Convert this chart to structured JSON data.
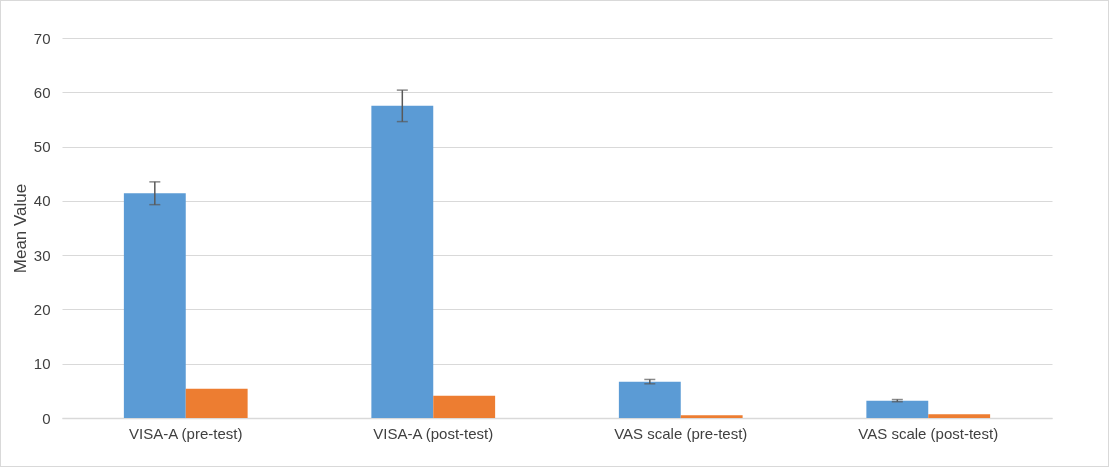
{
  "chart_data": {
    "type": "bar",
    "ylabel": "Mean Value",
    "categories": [
      "VISA-A (pre-test)",
      "VISA-A (post-test)",
      "VAS scale (pre-test)",
      "VAS scale (post-test)"
    ],
    "series": [
      {
        "color": "#5b9bd5",
        "values": [
          41.4,
          57.5,
          6.7,
          3.2
        ],
        "errors": [
          2.1,
          2.9,
          0.4,
          0.2
        ]
      },
      {
        "color": "#ed7d31",
        "values": [
          5.4,
          4.1,
          0.5,
          0.7
        ]
      }
    ],
    "ylim": [
      0,
      70
    ],
    "yticks": [
      0,
      10,
      20,
      30,
      40,
      50,
      60,
      70
    ],
    "grid": "y",
    "legend": false
  }
}
